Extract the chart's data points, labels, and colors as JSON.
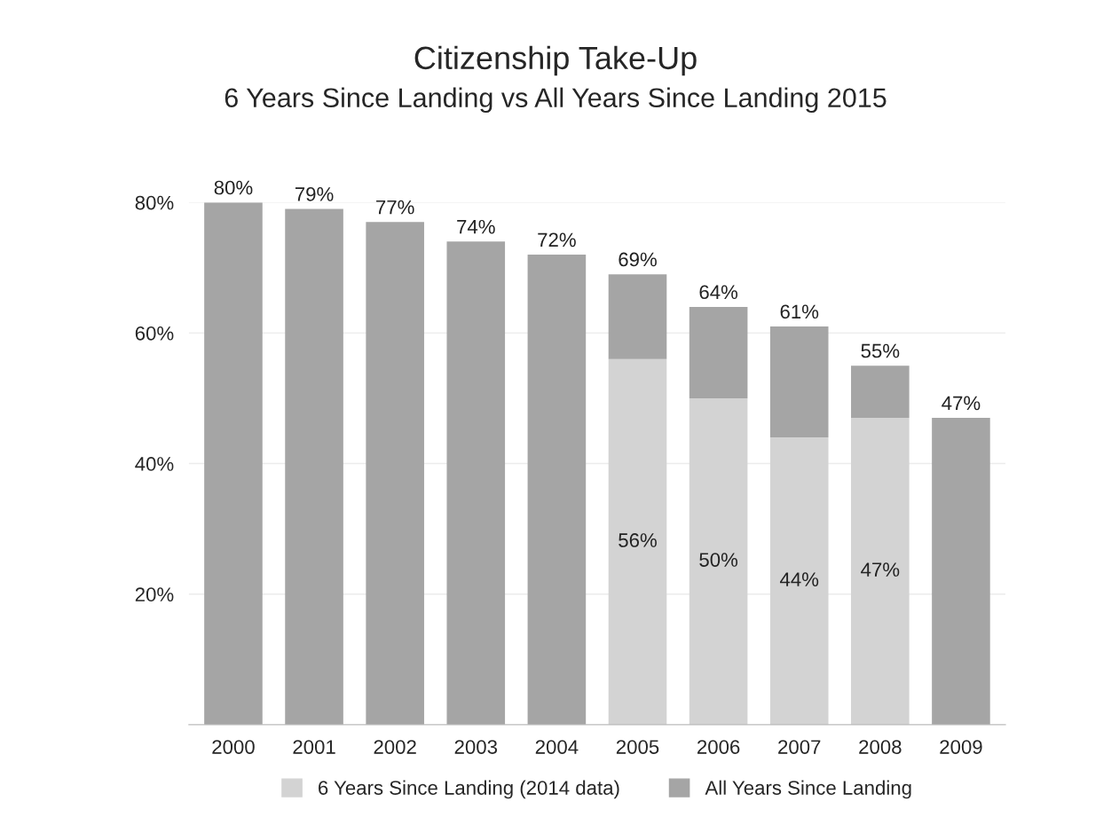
{
  "chart_data": {
    "type": "bar",
    "title": "Citizenship Take-Up",
    "subtitle": "6 Years Since Landing vs All Years Since Landing 2015",
    "categories": [
      "2000",
      "2001",
      "2002",
      "2003",
      "2004",
      "2005",
      "2006",
      "2007",
      "2008",
      "2009"
    ],
    "stacked": true,
    "series": [
      {
        "name": "6 Years Since Landing (2014 data)",
        "color": "#d3d3d3",
        "values": [
          null,
          null,
          null,
          null,
          null,
          56,
          50,
          44,
          47,
          null
        ],
        "value_labels": [
          null,
          null,
          null,
          null,
          null,
          "56%",
          "50%",
          "44%",
          "47%",
          null
        ]
      },
      {
        "name": "All Years Since Landing",
        "color": "#a5a5a5",
        "values": [
          80,
          79,
          77,
          74,
          72,
          13,
          14,
          17,
          8,
          47
        ]
      }
    ],
    "totals": [
      "80%",
      "79%",
      "77%",
      "74%",
      "72%",
      "69%",
      "64%",
      "61%",
      "55%",
      "47%"
    ],
    "ylim": [
      0,
      80
    ],
    "yticks": [
      {
        "value": 20,
        "label": "20%"
      },
      {
        "value": 40,
        "label": "40%"
      },
      {
        "value": 60,
        "label": "60%"
      },
      {
        "value": 80,
        "label": "80%"
      }
    ],
    "grid": "y",
    "legend": "bottom"
  }
}
